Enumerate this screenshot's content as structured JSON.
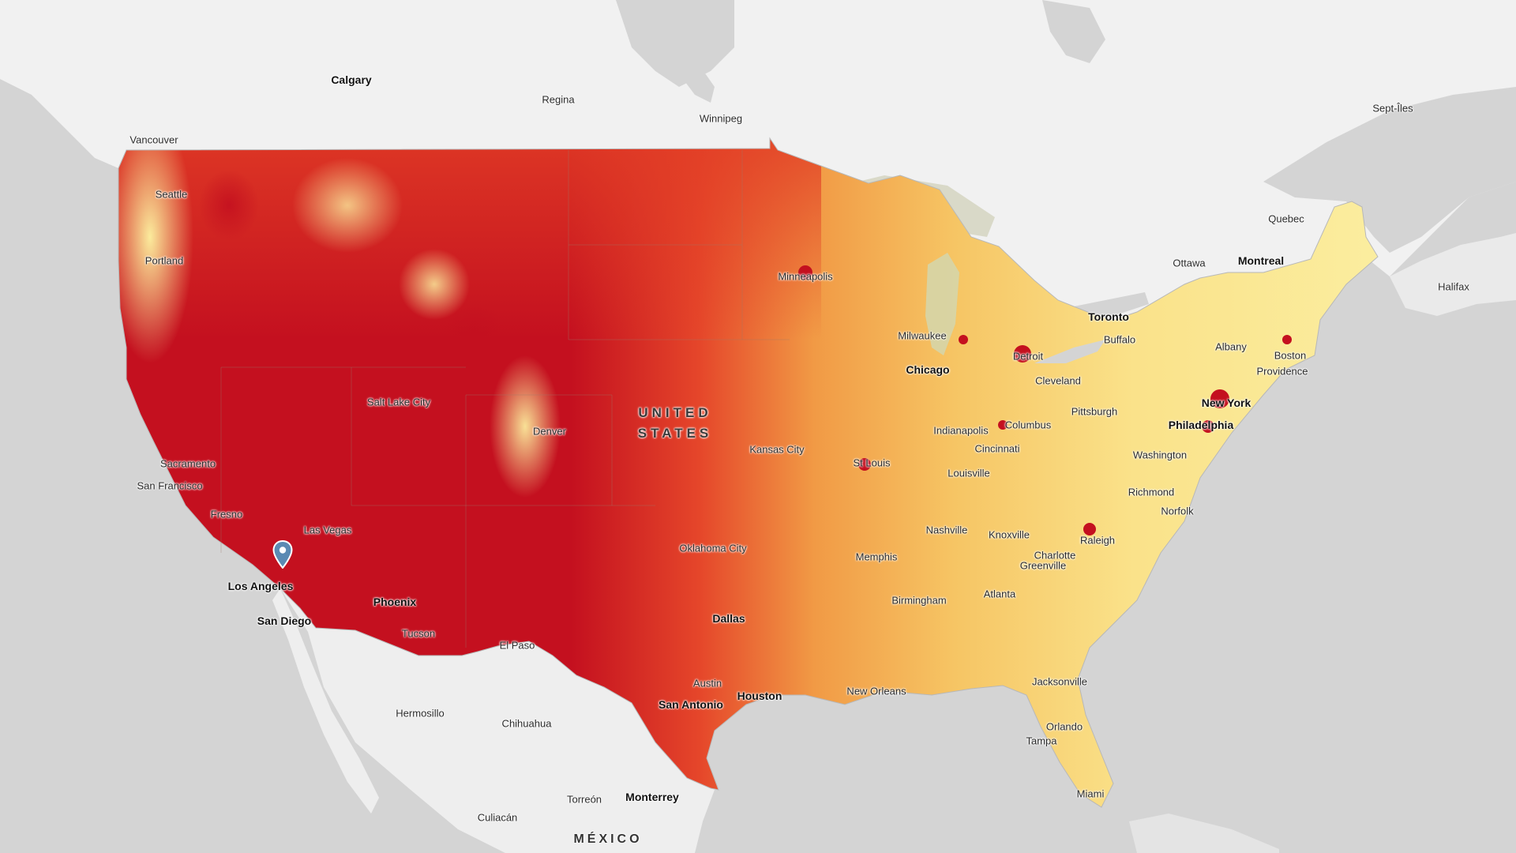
{
  "map": {
    "country_labels": {
      "united_states": [
        "UNITED",
        "STATES"
      ],
      "mexico": "MÉXICO"
    },
    "cities": {
      "calgary": "Calgary",
      "regina": "Regina",
      "winnipeg": "Winnipeg",
      "vancouver": "Vancouver",
      "sept_iles": "Sept-Îles",
      "seattle": "Seattle",
      "portland": "Portland",
      "quebec": "Quebec",
      "ottawa": "Ottawa",
      "montreal": "Montreal",
      "halifax": "Halifax",
      "minneapolis": "Minneapolis",
      "toronto": "Toronto",
      "milwaukee": "Milwaukee",
      "buffalo": "Buffalo",
      "albany": "Albany",
      "boston": "Boston",
      "detroit": "Detroit",
      "chicago": "Chicago",
      "providence": "Providence",
      "cleveland": "Cleveland",
      "salt_lake_city": "Salt Lake City",
      "new_york": "New York",
      "pittsburgh": "Pittsburgh",
      "denver": "Denver",
      "columbus": "Columbus",
      "indianapolis": "Indianapolis",
      "philadelphia": "Philadelphia",
      "kansas_city": "Kansas City",
      "cincinnati": "Cincinnati",
      "washington": "Washington",
      "sacramento": "Sacramento",
      "st_louis": "St Louis",
      "louisville": "Louisville",
      "san_francisco": "San Francisco",
      "richmond": "Richmond",
      "fresno": "Fresno",
      "norfolk": "Norfolk",
      "las_vegas": "Las Vegas",
      "nashville": "Nashville",
      "knoxville": "Knoxville",
      "raleigh": "Raleigh",
      "oklahoma_city": "Oklahoma City",
      "charlotte": "Charlotte",
      "memphis": "Memphis",
      "greenville": "Greenville",
      "los_angeles": "Los Angeles",
      "atlanta": "Atlanta",
      "phoenix": "Phoenix",
      "birmingham": "Birmingham",
      "dallas": "Dallas",
      "san_diego": "San Diego",
      "tucson": "Tucson",
      "el_paso": "El Paso",
      "austin": "Austin",
      "jacksonville": "Jacksonville",
      "houston": "Houston",
      "new_orleans": "New Orleans",
      "san_antonio": "San Antonio",
      "hermosillo": "Hermosillo",
      "chihuahua": "Chihuahua",
      "orlando": "Orlando",
      "tampa": "Tampa",
      "miami": "Miami",
      "torreon": "Torreón",
      "monterrey": "Monterrey",
      "culiacan": "Culiacán"
    },
    "colors": {
      "ocean": "#d4d4d4",
      "land_outside": "#f1f1f1",
      "scale_low": "#fbf2a6",
      "scale_mid_low": "#f8d371",
      "scale_mid": "#f5a545",
      "scale_mid_high": "#ea5b29",
      "scale_high": "#c4101f",
      "marker": "#5b8ab3"
    },
    "marker_icon": "map-pin-icon"
  }
}
